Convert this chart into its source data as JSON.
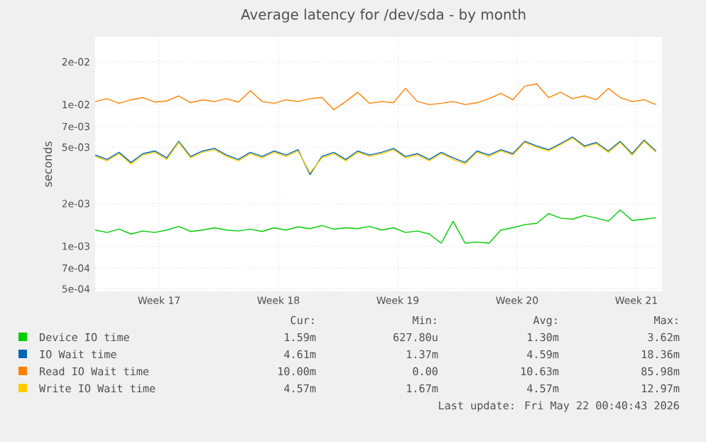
{
  "chart_data": {
    "type": "line",
    "title": "Average latency for /dev/sda - by month",
    "ylabel": "seconds",
    "log": "y",
    "grid": true,
    "legend": "bottom",
    "x": [
      "2026-04-18T19:00",
      "2026-04-19T11:48",
      "2026-04-20T04:36",
      "2026-04-20T21:24",
      "2026-04-21T14:12",
      "2026-04-22T07:00",
      "2026-04-22T23:48",
      "2026-04-23T16:36",
      "2026-04-24T09:24",
      "2026-04-25T02:12",
      "2026-04-25T19:00",
      "2026-04-26T11:48",
      "2026-04-27T04:36",
      "2026-04-27T21:24",
      "2026-04-28T14:12",
      "2026-04-29T07:00",
      "2026-04-29T23:48",
      "2026-04-30T16:36",
      "2026-05-01T09:24",
      "2026-05-02T02:12",
      "2026-05-02T19:00",
      "2026-05-03T11:48",
      "2026-05-04T04:36",
      "2026-05-04T21:24",
      "2026-05-05T14:12",
      "2026-05-06T07:00",
      "2026-05-06T23:48",
      "2026-05-07T16:36",
      "2026-05-08T09:24",
      "2026-05-09T02:12",
      "2026-05-09T19:00",
      "2026-05-10T11:48",
      "2026-05-11T04:36",
      "2026-05-11T21:24",
      "2026-05-12T14:12",
      "2026-05-13T07:00",
      "2026-05-13T23:48",
      "2026-05-14T16:36",
      "2026-05-15T09:24",
      "2026-05-16T02:12",
      "2026-05-16T19:00",
      "2026-05-17T11:48",
      "2026-05-18T04:36",
      "2026-05-18T21:24",
      "2026-05-19T14:12",
      "2026-05-20T07:00",
      "2026-05-20T23:48",
      "2026-05-21T16:36"
    ],
    "xlim": [
      "2026-04-18T19:00",
      "2026-05-22T01:00"
    ],
    "xticks": [
      {
        "value": "2026-04-22T13:00",
        "label": "Week 17"
      },
      {
        "value": "2026-04-29T13:00",
        "label": "Week 18"
      },
      {
        "value": "2026-05-06T13:00",
        "label": "Week 19"
      },
      {
        "value": "2026-05-13T13:00",
        "label": "Week 20"
      },
      {
        "value": "2026-05-20T13:00",
        "label": "Week 21"
      }
    ],
    "ylim": [
      0.00048,
      0.03
    ],
    "yticks": [
      {
        "value": 0.0005,
        "label": "5e-04"
      },
      {
        "value": 0.0007,
        "label": "7e-04"
      },
      {
        "value": 0.001,
        "label": "1e-03"
      },
      {
        "value": 0.002,
        "label": "2e-03"
      },
      {
        "value": 0.005,
        "label": "5e-03"
      },
      {
        "value": 0.007,
        "label": "7e-03"
      },
      {
        "value": 0.01,
        "label": "1e-02"
      },
      {
        "value": 0.02,
        "label": "2e-02"
      }
    ],
    "series": [
      {
        "name": "Device IO time",
        "color": "#00cc00",
        "values": [
          0.0013,
          0.00125,
          0.00132,
          0.00122,
          0.00128,
          0.00125,
          0.0013,
          0.00138,
          0.00127,
          0.0013,
          0.00135,
          0.0013,
          0.00128,
          0.00132,
          0.00127,
          0.00135,
          0.0013,
          0.00137,
          0.00133,
          0.0014,
          0.00132,
          0.00135,
          0.00133,
          0.00138,
          0.0013,
          0.00135,
          0.00125,
          0.00128,
          0.00122,
          0.00105,
          0.0015,
          0.00105,
          0.00107,
          0.00105,
          0.0013,
          0.00135,
          0.00142,
          0.00145,
          0.0017,
          0.00158,
          0.00155,
          0.00165,
          0.00158,
          0.0015,
          0.0018,
          0.00152,
          0.00155,
          0.00159
        ]
      },
      {
        "name": "IO Wait time",
        "color": "#0066b3",
        "values": [
          0.0044,
          0.0041,
          0.0046,
          0.0039,
          0.0045,
          0.0047,
          0.0042,
          0.0055,
          0.0043,
          0.0047,
          0.0049,
          0.0044,
          0.0041,
          0.0046,
          0.0043,
          0.0047,
          0.0044,
          0.0048,
          0.0032,
          0.0043,
          0.0046,
          0.0041,
          0.0047,
          0.0044,
          0.0046,
          0.0049,
          0.0043,
          0.0045,
          0.0041,
          0.0046,
          0.0042,
          0.0039,
          0.0047,
          0.0044,
          0.0048,
          0.0045,
          0.0055,
          0.0051,
          0.0048,
          0.0053,
          0.0059,
          0.0051,
          0.0054,
          0.0047,
          0.0055,
          0.0045,
          0.0056,
          0.0047
        ]
      },
      {
        "name": "Read IO Wait time",
        "color": "#ff8000",
        "values": [
          0.0105,
          0.011,
          0.0102,
          0.0108,
          0.0112,
          0.0104,
          0.0106,
          0.0115,
          0.0103,
          0.0108,
          0.0105,
          0.011,
          0.0104,
          0.0125,
          0.0105,
          0.0102,
          0.0108,
          0.0105,
          0.011,
          0.0112,
          0.0092,
          0.0105,
          0.0122,
          0.0102,
          0.0105,
          0.0103,
          0.013,
          0.0105,
          0.01,
          0.0102,
          0.0105,
          0.01,
          0.0103,
          0.011,
          0.012,
          0.0108,
          0.0135,
          0.014,
          0.0112,
          0.0122,
          0.011,
          0.0115,
          0.0108,
          0.013,
          0.0112,
          0.0105,
          0.0108,
          0.01
        ]
      },
      {
        "name": "Write IO Wait time",
        "color": "#ffcc00",
        "values": [
          0.0043,
          0.004,
          0.0045,
          0.0038,
          0.0044,
          0.0046,
          0.0041,
          0.0054,
          0.0042,
          0.0046,
          0.0048,
          0.0043,
          0.004,
          0.0045,
          0.0042,
          0.0046,
          0.0043,
          0.0047,
          0.0033,
          0.0042,
          0.0045,
          0.004,
          0.0046,
          0.0043,
          0.0045,
          0.0048,
          0.0042,
          0.0044,
          0.004,
          0.0045,
          0.0041,
          0.0038,
          0.0046,
          0.0043,
          0.0047,
          0.0044,
          0.0054,
          0.005,
          0.0047,
          0.0052,
          0.0058,
          0.005,
          0.0053,
          0.0046,
          0.0054,
          0.0044,
          0.0055,
          0.0046
        ]
      }
    ],
    "annotations": [
      "Cur:",
      "Min:",
      "Avg:",
      "Max:",
      "1.59m",
      "627.80u",
      "1.30m",
      "3.62m",
      "4.61m",
      "1.37m",
      "4.59m",
      "18.36m",
      "10.00m",
      "0.00",
      "10.63m",
      "85.98m",
      "4.57m",
      "1.67m",
      "4.57m",
      "12.97m",
      "Last update: Fri May 22 00:40:43 2026"
    ]
  }
}
